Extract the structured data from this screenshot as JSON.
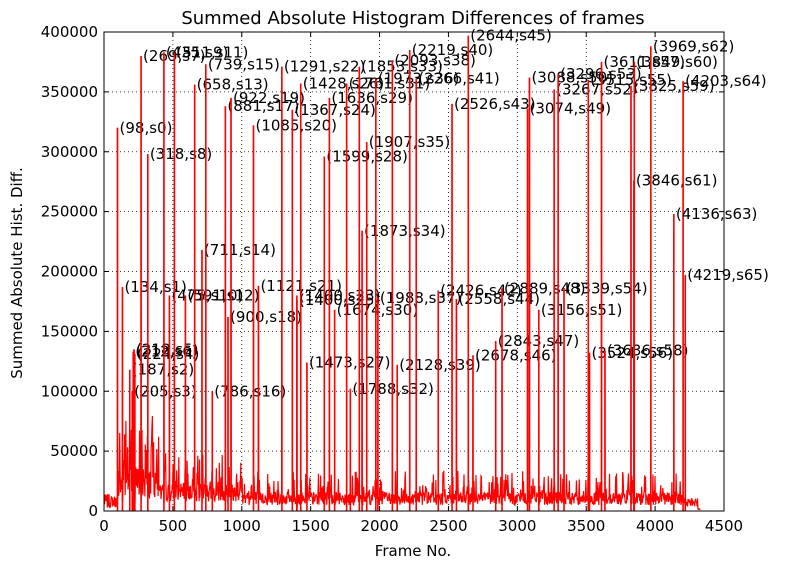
{
  "chart_data": {
    "type": "line",
    "title": "Summed Absolute Histogram Differences of frames",
    "xlabel": "Frame No.",
    "ylabel": "Summed Absolute Hist. Diff.",
    "xlim": [
      0,
      4500
    ],
    "ylim": [
      0,
      400000
    ],
    "xticks": [
      0,
      500,
      1000,
      1500,
      2000,
      2500,
      3000,
      3500,
      4000,
      4500
    ],
    "yticks": [
      0,
      50000,
      100000,
      150000,
      200000,
      250000,
      300000,
      350000,
      400000
    ],
    "xtick_labels": [
      "0",
      "500",
      "1000",
      "1500",
      "2000",
      "2500",
      "3000",
      "3500",
      "4000",
      "4500"
    ],
    "ytick_labels": [
      "0",
      "50000",
      "100000",
      "150000",
      "200000",
      "250000",
      "300000",
      "350000",
      "400000"
    ],
    "grid": true,
    "line_color": "#ff0000",
    "series": [
      {
        "peaks": [
          {
            "x": 98,
            "y": 320000,
            "label": "(98,s0)"
          },
          {
            "x": 134,
            "y": 187000,
            "label": "(134,s1)"
          },
          {
            "x": 187,
            "y": 118000,
            "label": "(187,s2)"
          },
          {
            "x": 205,
            "y": 100000,
            "label": "(205,s3)"
          },
          {
            "x": 224,
            "y": 131000,
            "label": "(224,s4)"
          },
          {
            "x": 218,
            "y": 135000,
            "label": "(218,s5)"
          },
          {
            "x": 212,
            "y": 133000,
            "label": "(212,s6)"
          },
          {
            "x": 269,
            "y": 380000,
            "label": "(269,s7)"
          },
          {
            "x": 318,
            "y": 298000,
            "label": "(318,s8)"
          },
          {
            "x": 435,
            "y": 383000,
            "label": "(435,s9)"
          },
          {
            "x": 475,
            "y": 180000,
            "label": "(475,s10)"
          },
          {
            "x": 511,
            "y": 383000,
            "label": "(511,s11)"
          },
          {
            "x": 591,
            "y": 180000,
            "label": "(591,s12)"
          },
          {
            "x": 658,
            "y": 356000,
            "label": "(658,s13)"
          },
          {
            "x": 711,
            "y": 218000,
            "label": "(711,s14)"
          },
          {
            "x": 739,
            "y": 373000,
            "label": "(739,s15)"
          },
          {
            "x": 786,
            "y": 100000,
            "label": "(786,s16)"
          },
          {
            "x": 881,
            "y": 338000,
            "label": "(881,s17)"
          },
          {
            "x": 900,
            "y": 162000,
            "label": "(900,s18)"
          },
          {
            "x": 922,
            "y": 345000,
            "label": "(922,s19)"
          },
          {
            "x": 1085,
            "y": 322000,
            "label": "(1085,s20)"
          },
          {
            "x": 1121,
            "y": 188000,
            "label": "(1121,s21)"
          },
          {
            "x": 1291,
            "y": 371000,
            "label": "(1291,s22)"
          },
          {
            "x": 1400,
            "y": 180000,
            "label": "(1400,s23)"
          },
          {
            "x": 1367,
            "y": 335000,
            "label": "(1367,s24)"
          },
          {
            "x": 1400,
            "y": 176000,
            "label": "(1400,s25)"
          },
          {
            "x": 1428,
            "y": 357000,
            "label": "(1428,s26)"
          },
          {
            "x": 1473,
            "y": 124000,
            "label": "(1473,s27)"
          },
          {
            "x": 1599,
            "y": 296000,
            "label": "(1599,s28)"
          },
          {
            "x": 1636,
            "y": 345000,
            "label": "(1636,s29)"
          },
          {
            "x": 1674,
            "y": 168000,
            "label": "(1674,s30)"
          },
          {
            "x": 1761,
            "y": 357000,
            "label": "(1761,s31)"
          },
          {
            "x": 1788,
            "y": 102000,
            "label": "(1788,s32)"
          },
          {
            "x": 1853,
            "y": 371000,
            "label": "(1853,s33)"
          },
          {
            "x": 1873,
            "y": 234000,
            "label": "(1873,s34)"
          },
          {
            "x": 1907,
            "y": 308000,
            "label": "(1907,s35)"
          },
          {
            "x": 1973,
            "y": 361000,
            "label": "(1973,s36)"
          },
          {
            "x": 1988,
            "y": 178000,
            "label": "(1988,s37)"
          },
          {
            "x": 2093,
            "y": 376000,
            "label": "(2093,s38)"
          },
          {
            "x": 2128,
            "y": 122000,
            "label": "(2128,s39)"
          },
          {
            "x": 2219,
            "y": 385000,
            "label": "(2219,s40)"
          },
          {
            "x": 2266,
            "y": 361000,
            "label": "(2266,s41)"
          },
          {
            "x": 2426,
            "y": 184000,
            "label": "(2426,s42)"
          },
          {
            "x": 2526,
            "y": 340000,
            "label": "(2526,s43)"
          },
          {
            "x": 2558,
            "y": 177000,
            "label": "(2558,s44)"
          },
          {
            "x": 2644,
            "y": 397000,
            "label": "(2644,s45)"
          },
          {
            "x": 2678,
            "y": 130000,
            "label": "(2678,s46)"
          },
          {
            "x": 2843,
            "y": 142000,
            "label": "(2843,s47)"
          },
          {
            "x": 2889,
            "y": 186000,
            "label": "(2889,s48)"
          },
          {
            "x": 3074,
            "y": 336000,
            "label": "(3074,s49)"
          },
          {
            "x": 3088,
            "y": 362000,
            "label": "(3088,s50)"
          },
          {
            "x": 3156,
            "y": 168000,
            "label": "(3156,s51)"
          },
          {
            "x": 3267,
            "y": 352000,
            "label": "(3267,s52)"
          },
          {
            "x": 3296,
            "y": 365000,
            "label": "(3296,s53)"
          },
          {
            "x": 3339,
            "y": 186000,
            "label": "(3339,s54)"
          },
          {
            "x": 3515,
            "y": 360000,
            "label": "(3515,s55)"
          },
          {
            "x": 3524,
            "y": 132000,
            "label": "(3524,s56)"
          },
          {
            "x": 3611,
            "y": 375000,
            "label": "(3611,s57)"
          },
          {
            "x": 3636,
            "y": 134000,
            "label": "(3636,s58)"
          },
          {
            "x": 3825,
            "y": 355000,
            "label": "(3825,s59)"
          },
          {
            "x": 3849,
            "y": 375000,
            "label": "(3849,s60)"
          },
          {
            "x": 3846,
            "y": 276000,
            "label": "(3846,s61)"
          },
          {
            "x": 3969,
            "y": 388000,
            "label": "(3969,s62)"
          },
          {
            "x": 4203,
            "y": 359000,
            "label": "(4203,s64)"
          },
          {
            "x": 4136,
            "y": 248000,
            "label": "(4136,s63)"
          },
          {
            "x": 4219,
            "y": 197000,
            "label": "(4219,s65)"
          }
        ]
      }
    ]
  }
}
